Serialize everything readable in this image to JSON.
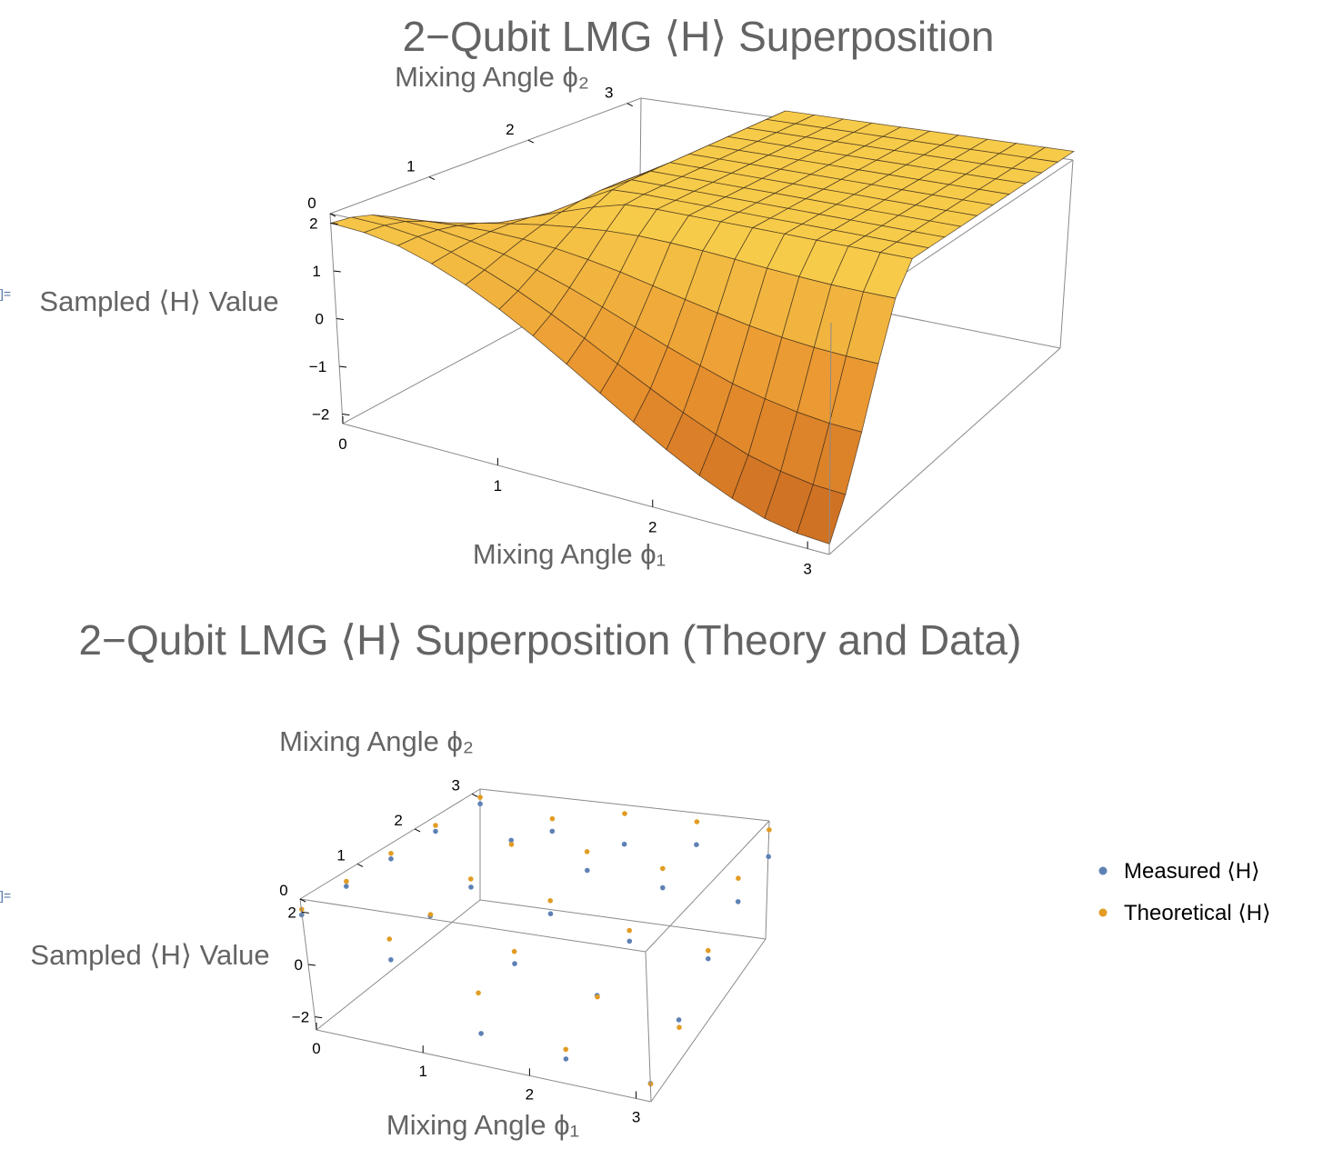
{
  "chart_data": [
    {
      "type": "surface3d",
      "title": "2−Qubit LMG ⟨H⟩ Superposition",
      "xlabel": "Mixing Angle ϕ₁",
      "ylabel": "Mixing Angle ϕ₂",
      "zlabel": "Sampled ⟨H⟩ Value",
      "out_marker": "]=",
      "xlim": [
        0,
        3.14
      ],
      "ylim": [
        0,
        3.14
      ],
      "zlim": [
        -2.2,
        2.2
      ],
      "x_ticks": [
        "0",
        "1",
        "2",
        "3"
      ],
      "y_ticks": [
        "0",
        "1",
        "2",
        "3"
      ],
      "z_ticks": [
        "−2",
        "−1",
        "0",
        "1",
        "2"
      ],
      "colors": {
        "low": "#c7661f",
        "mid": "#e9932f",
        "high": "#f7cb4a",
        "mesh": "#3a2a1a",
        "box": "#8a8a8a"
      },
      "x": [
        0,
        0.2094,
        0.4189,
        0.6283,
        0.8378,
        1.0472,
        1.2566,
        1.4661,
        1.6755,
        1.885,
        2.0944,
        2.3038,
        2.5133,
        2.7227,
        2.9322,
        3.1416
      ],
      "y": [
        0,
        0.2094,
        0.4189,
        0.6283,
        0.8378,
        1.0472,
        1.2566,
        1.4661,
        1.6755,
        1.885,
        2.0944,
        2.3038,
        2.5133,
        2.7227,
        2.9322,
        3.1416
      ],
      "z": [
        [
          2.0,
          1.96,
          1.84,
          1.62,
          1.34,
          1.0,
          0.62,
          0.21,
          -0.21,
          -0.62,
          -1.0,
          -1.34,
          -1.62,
          -1.84,
          -1.96,
          -2.0
        ],
        [
          1.96,
          1.94,
          1.85,
          1.68,
          1.46,
          1.18,
          0.86,
          0.52,
          0.16,
          -0.18,
          -0.5,
          -0.78,
          -1.02,
          -1.18,
          -1.28,
          -1.31
        ],
        [
          1.84,
          1.85,
          1.82,
          1.73,
          1.6,
          1.42,
          1.2,
          0.95,
          0.69,
          0.44,
          0.21,
          0.0,
          -0.15,
          -0.26,
          -0.33,
          -0.35
        ],
        [
          1.62,
          1.68,
          1.73,
          1.75,
          1.73,
          1.68,
          1.59,
          1.47,
          1.33,
          1.19,
          1.06,
          0.94,
          0.85,
          0.79,
          0.76,
          0.75
        ],
        [
          1.34,
          1.46,
          1.6,
          1.73,
          1.85,
          1.94,
          2.0,
          2.03,
          2.02,
          1.99,
          1.95,
          1.9,
          1.86,
          1.83,
          1.82,
          1.82
        ],
        [
          1.0,
          1.18,
          1.42,
          1.68,
          1.94,
          2.18,
          2.37,
          2.5,
          2.58,
          2.6,
          2.59,
          2.56,
          2.53,
          2.51,
          2.5,
          2.5
        ],
        [
          0.62,
          0.86,
          1.2,
          1.59,
          2.0,
          2.37,
          2.68,
          2.9,
          3.02,
          3.06,
          3.04,
          3.0,
          2.95,
          2.91,
          2.89,
          2.88
        ],
        [
          0.21,
          0.52,
          0.95,
          1.47,
          2.03,
          2.5,
          2.9,
          3.17,
          3.3,
          3.33,
          3.3,
          3.24,
          3.17,
          3.12,
          3.09,
          3.08
        ],
        [
          -0.21,
          0.16,
          0.69,
          1.33,
          2.02,
          2.58,
          3.02,
          3.3,
          3.42,
          3.43,
          3.38,
          3.31,
          3.24,
          3.19,
          3.16,
          3.15
        ],
        [
          -0.62,
          -0.18,
          0.44,
          1.19,
          1.99,
          2.6,
          3.06,
          3.33,
          3.43,
          3.42,
          3.36,
          3.28,
          3.21,
          3.16,
          3.13,
          3.12
        ],
        [
          -1.0,
          -0.5,
          0.21,
          1.06,
          1.95,
          2.59,
          3.04,
          3.3,
          3.38,
          3.36,
          3.3,
          3.22,
          3.15,
          3.1,
          3.07,
          3.06
        ],
        [
          -1.34,
          -0.78,
          0.0,
          0.94,
          1.9,
          2.56,
          3.0,
          3.24,
          3.31,
          3.28,
          3.22,
          3.14,
          3.07,
          3.02,
          2.99,
          2.98
        ],
        [
          -1.62,
          -1.02,
          -0.15,
          0.85,
          1.86,
          2.53,
          2.95,
          3.17,
          3.24,
          3.21,
          3.15,
          3.07,
          3.0,
          2.95,
          2.92,
          2.91
        ],
        [
          -1.84,
          -1.18,
          -0.26,
          0.79,
          1.83,
          2.51,
          2.91,
          3.12,
          3.19,
          3.16,
          3.1,
          3.02,
          2.95,
          2.9,
          2.87,
          2.86
        ],
        [
          -1.96,
          -1.28,
          -0.33,
          0.76,
          1.82,
          2.5,
          2.89,
          3.09,
          3.16,
          3.13,
          3.07,
          2.99,
          2.92,
          2.87,
          2.84,
          2.83
        ],
        [
          -2.0,
          -1.31,
          -0.35,
          0.75,
          1.82,
          2.5,
          2.88,
          3.08,
          3.15,
          3.12,
          3.06,
          2.98,
          2.91,
          2.86,
          2.83,
          2.82
        ]
      ]
    },
    {
      "type": "scatter3d",
      "title": "2−Qubit LMG ⟨H⟩ Superposition (Theory and Data)",
      "xlabel": "Mixing Angle ϕ₁",
      "ylabel": "Mixing Angle ϕ₂",
      "zlabel": "Sampled ⟨H⟩ Value",
      "out_marker": "]=",
      "xlim": [
        0,
        3.14
      ],
      "ylim": [
        0,
        3.14
      ],
      "zlim": [
        -2.5,
        2.5
      ],
      "x_ticks": [
        "0",
        "1",
        "2",
        "3"
      ],
      "y_ticks": [
        "0",
        "1",
        "2",
        "3"
      ],
      "z_ticks": [
        "−2",
        "0",
        "2"
      ],
      "legend_position": "right",
      "series": [
        {
          "name": "Measured ⟨H⟩",
          "color": "#5e81b5",
          "points": [
            [
              0.0,
              0.0,
              2.0
            ],
            [
              0.0,
              0.785,
              2.02
            ],
            [
              0.0,
              1.571,
              2.0
            ],
            [
              0.0,
              2.356,
              1.98
            ],
            [
              0.0,
              3.142,
              1.95
            ],
            [
              0.785,
              0.0,
              0.85
            ],
            [
              0.785,
              0.785,
              1.35
            ],
            [
              0.785,
              1.571,
              1.3
            ],
            [
              0.785,
              2.356,
              2.0
            ],
            [
              0.785,
              3.142,
              1.1
            ],
            [
              1.571,
              0.0,
              -1.25
            ],
            [
              1.571,
              0.785,
              0.05
            ],
            [
              1.571,
              1.571,
              0.7
            ],
            [
              1.571,
              2.356,
              1.15
            ],
            [
              1.571,
              3.142,
              0.9
            ],
            [
              2.356,
              0.0,
              -1.55
            ],
            [
              2.356,
              0.785,
              -0.6
            ],
            [
              2.356,
              1.571,
              0.1
            ],
            [
              2.356,
              2.356,
              0.85
            ],
            [
              2.356,
              3.142,
              1.25
            ],
            [
              3.142,
              0.0,
              -1.8
            ],
            [
              3.142,
              0.785,
              -0.95
            ],
            [
              3.142,
              1.571,
              -0.1
            ],
            [
              3.142,
              2.356,
              0.7
            ],
            [
              3.142,
              3.142,
              1.1
            ]
          ]
        },
        {
          "name": "Theoretical ⟨H⟩",
          "color": "#e19c24",
          "points": [
            [
              0.0,
              0.0,
              2.0
            ],
            [
              0.0,
              0.785,
              2.0
            ],
            [
              0.0,
              1.571,
              2.0
            ],
            [
              0.0,
              2.356,
              2.0
            ],
            [
              0.0,
              3.142,
              2.0
            ],
            [
              0.785,
              0.0,
              1.41
            ],
            [
              0.785,
              0.785,
              1.2
            ],
            [
              0.785,
              1.571,
              1.41
            ],
            [
              0.785,
              2.356,
              1.6
            ],
            [
              0.785,
              3.142,
              1.41
            ],
            [
              1.571,
              0.0,
              0.0
            ],
            [
              1.571,
              0.785,
              0.3
            ],
            [
              1.571,
              1.571,
              1.0
            ],
            [
              1.571,
              2.356,
              1.7
            ],
            [
              1.571,
              3.142,
              2.0
            ],
            [
              2.356,
              0.0,
              -1.41
            ],
            [
              2.356,
              0.785,
              -0.85
            ],
            [
              2.356,
              1.571,
              0.3
            ],
            [
              2.356,
              2.356,
              1.41
            ],
            [
              2.356,
              3.142,
              2.0
            ],
            [
              3.142,
              0.0,
              -2.0
            ],
            [
              3.142,
              0.785,
              -1.41
            ],
            [
              3.142,
              1.571,
              0.0
            ],
            [
              3.142,
              2.356,
              1.41
            ],
            [
              3.142,
              3.142,
              2.0
            ]
          ]
        }
      ]
    }
  ]
}
